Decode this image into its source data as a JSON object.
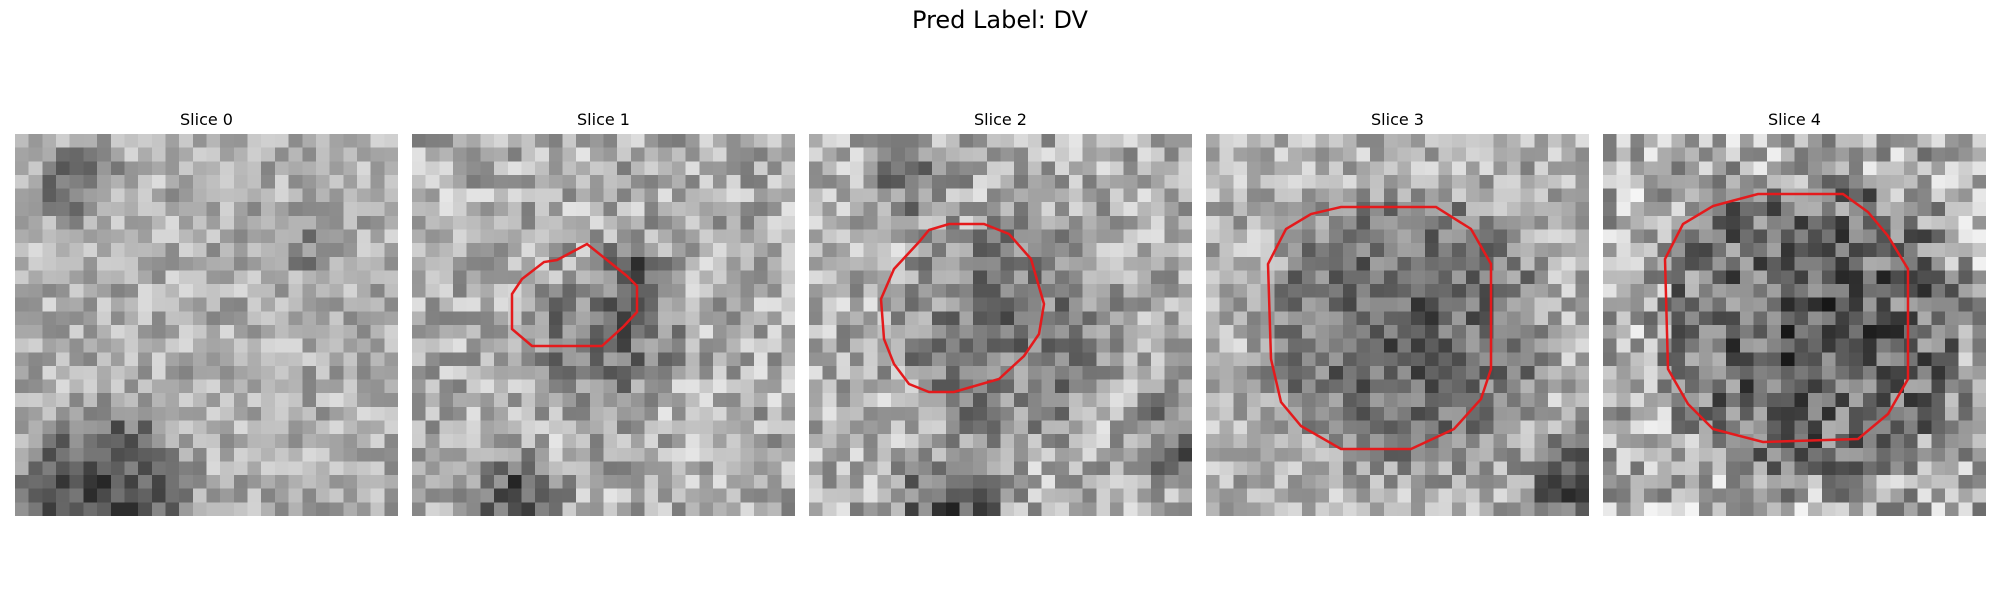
{
  "figure": {
    "title": "Pred Label: DV"
  },
  "panels": [
    {
      "title": "Slice 0",
      "has_contour": false
    },
    {
      "title": "Slice 1",
      "has_contour": true
    },
    {
      "title": "Slice 2",
      "has_contour": true
    },
    {
      "title": "Slice 3",
      "has_contour": true
    },
    {
      "title": "Slice 4",
      "has_contour": true
    }
  ],
  "colors": {
    "contour": "#e41a1c",
    "colormap": "grayscale"
  }
}
